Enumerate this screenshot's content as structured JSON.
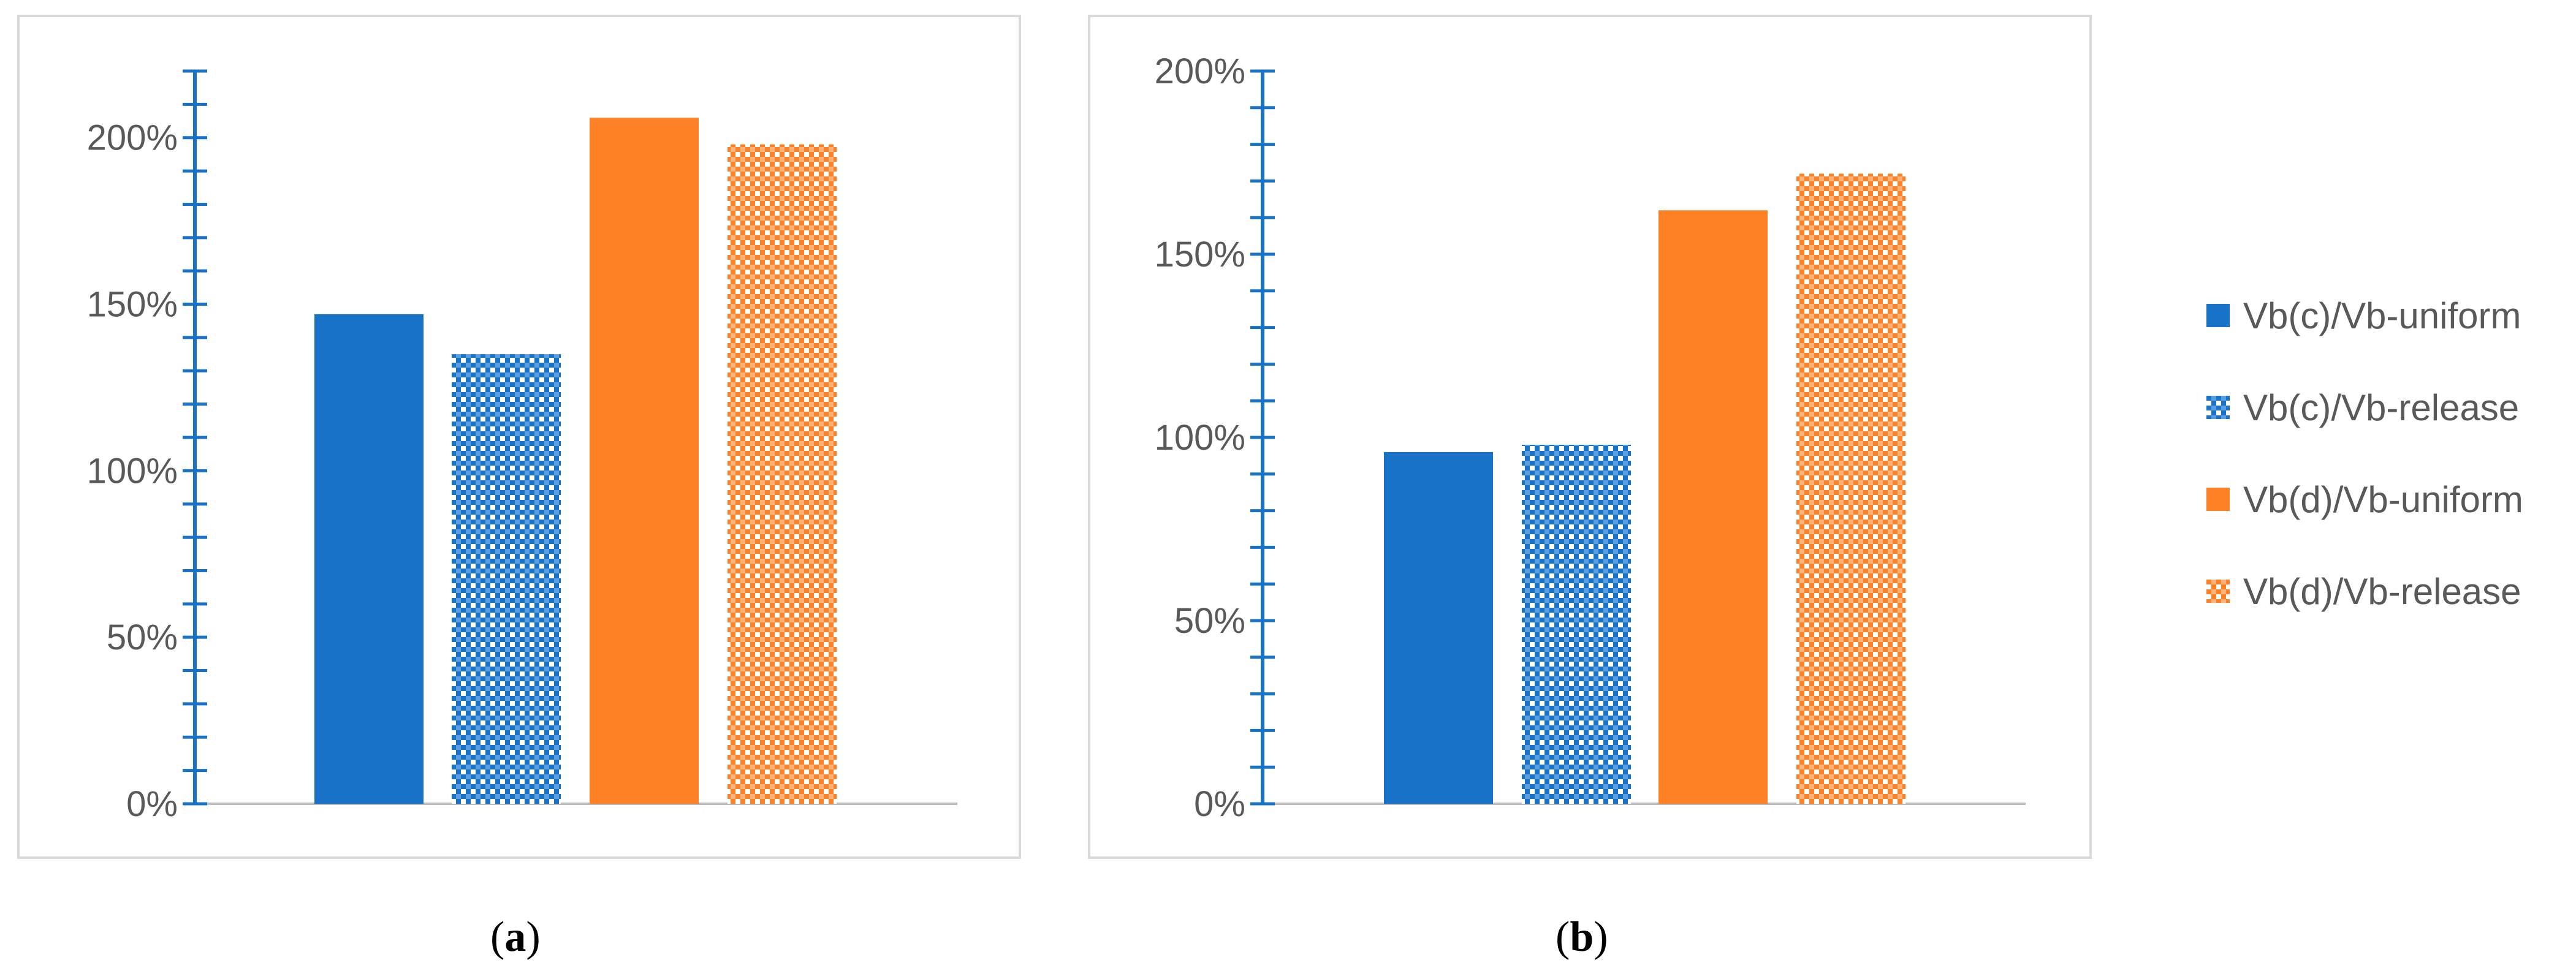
{
  "colors": {
    "blue": "#1872C8",
    "orange": "#FF8126",
    "axis": "#1872C8",
    "tick_text": "#595959",
    "border": "#d9d9d9"
  },
  "legend": [
    {
      "name": "Vb(c)/Vb-uniform",
      "color": "#1872C8",
      "pattern": "solid"
    },
    {
      "name": "Vb(c)/Vb-release",
      "color": "#1872C8",
      "pattern": "checker"
    },
    {
      "name": "Vb(d)/Vb-uniform",
      "color": "#FF8126",
      "pattern": "solid"
    },
    {
      "name": "Vb(d)/Vb-release",
      "color": "#FF8126",
      "pattern": "checker"
    }
  ],
  "captions": {
    "a": "a",
    "b": "b"
  },
  "chart_data": [
    {
      "type": "bar",
      "panel": "a",
      "title": "",
      "xlabel": "",
      "ylabel": "",
      "ylim": [
        0,
        2.2
      ],
      "yticks": [
        0,
        0.5,
        1.0,
        1.5,
        2.0
      ],
      "ytick_labels": [
        "0%",
        "50%",
        "100%",
        "150%",
        "200%"
      ],
      "minor_step": 0.1,
      "grid": false,
      "series": [
        {
          "name": "Vb(c)/Vb-uniform",
          "values": [
            1.47
          ]
        },
        {
          "name": "Vb(c)/Vb-release",
          "values": [
            1.35
          ]
        },
        {
          "name": "Vb(d)/Vb-uniform",
          "values": [
            2.06
          ]
        },
        {
          "name": "Vb(d)/Vb-release",
          "values": [
            1.98
          ]
        }
      ]
    },
    {
      "type": "bar",
      "panel": "b",
      "title": "",
      "xlabel": "",
      "ylabel": "",
      "ylim": [
        0,
        2.0
      ],
      "yticks": [
        0,
        0.5,
        1.0,
        1.5,
        2.0
      ],
      "ytick_labels": [
        "0%",
        "50%",
        "100%",
        "150%",
        "200%"
      ],
      "minor_step": 0.1,
      "grid": false,
      "series": [
        {
          "name": "Vb(c)/Vb-uniform",
          "values": [
            0.96
          ]
        },
        {
          "name": "Vb(c)/Vb-release",
          "values": [
            0.98
          ]
        },
        {
          "name": "Vb(d)/Vb-uniform",
          "values": [
            1.62
          ]
        },
        {
          "name": "Vb(d)/Vb-release",
          "values": [
            1.72
          ]
        }
      ]
    }
  ]
}
